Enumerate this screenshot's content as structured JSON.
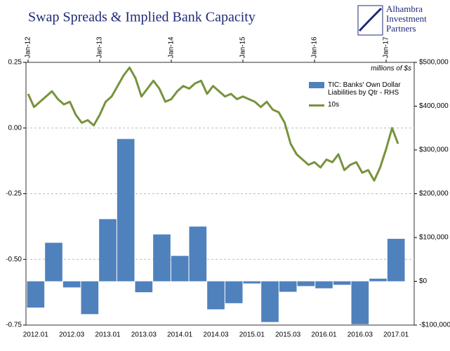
{
  "chart_data": {
    "type": "bar_line",
    "title": "Swap Spreads & Implied Bank Capacity",
    "logo": [
      "Alhambra",
      "Investment",
      "Partners"
    ],
    "annotation": "millions of $s",
    "top_ticks": [
      "Jan-12",
      "Jan-13",
      "Jan-14",
      "Jan-15",
      "Jan-16",
      "Jan-17"
    ],
    "categories": [
      "2012.01",
      null,
      "2012.03",
      null,
      "2013.01",
      null,
      "2013.03",
      null,
      "2014.01",
      null,
      "2014.03",
      null,
      "2015.01",
      null,
      "2015.03",
      null,
      "2016.01",
      null,
      "2016.03",
      null,
      "2017.01"
    ],
    "bars": {
      "name": "TIC: Banks' Own Dollar Liabilities by Qtr - RHS",
      "color": "#4f81bd",
      "axis": "y2",
      "values": [
        -60000,
        88000,
        -14000,
        -75000,
        142000,
        325000,
        -25000,
        107000,
        58000,
        125000,
        -64000,
        -50000,
        -5000,
        -93000,
        -24000,
        -11000,
        -16000,
        -8000,
        -98000,
        6000,
        97000
      ]
    },
    "line": {
      "name": "10s",
      "color": "#77933c",
      "x": [
        "2012-01",
        "2012-02",
        "2012-03",
        "2012-04",
        "2012-05",
        "2012-06",
        "2012-07",
        "2012-08",
        "2012-09",
        "2012-10",
        "2012-11",
        "2012-12",
        "2013-01",
        "2013-02",
        "2013-03",
        "2013-04",
        "2013-05",
        "2013-06",
        "2013-07",
        "2013-08",
        "2013-09",
        "2013-10",
        "2013-11",
        "2013-12",
        "2014-01",
        "2014-02",
        "2014-03",
        "2014-04",
        "2014-05",
        "2014-06",
        "2014-07",
        "2014-08",
        "2014-09",
        "2014-10",
        "2014-11",
        "2014-12",
        "2015-01",
        "2015-02",
        "2015-03",
        "2015-04",
        "2015-05",
        "2015-06",
        "2015-07",
        "2015-08",
        "2015-09",
        "2015-10",
        "2015-11",
        "2015-12",
        "2016-01",
        "2016-02",
        "2016-03",
        "2016-04",
        "2016-05",
        "2016-06",
        "2016-07",
        "2016-08",
        "2016-09",
        "2016-10",
        "2016-11",
        "2016-12",
        "2017-01",
        "2017-02",
        "2017-03"
      ],
      "values": [
        0.13,
        0.08,
        0.1,
        0.12,
        0.14,
        0.11,
        0.09,
        0.1,
        0.05,
        0.02,
        0.03,
        0.01,
        0.05,
        0.1,
        0.12,
        0.16,
        0.2,
        0.23,
        0.19,
        0.12,
        0.15,
        0.18,
        0.15,
        0.1,
        0.11,
        0.14,
        0.16,
        0.15,
        0.17,
        0.18,
        0.13,
        0.16,
        0.14,
        0.12,
        0.13,
        0.11,
        0.12,
        0.11,
        0.1,
        0.08,
        0.1,
        0.07,
        0.06,
        0.02,
        -0.06,
        -0.1,
        -0.12,
        -0.14,
        -0.13,
        -0.15,
        -0.12,
        -0.13,
        -0.1,
        -0.16,
        -0.14,
        -0.13,
        -0.17,
        -0.16,
        -0.2,
        -0.15,
        -0.08,
        0.0,
        -0.06
      ]
    },
    "ylim": [
      -0.75,
      0.25
    ],
    "yticks": [
      0.25,
      {
        "value": 0,
        "label": "0.00"
      },
      -0.25,
      {
        "value": -0.5,
        "label": "-0.50"
      },
      -0.75
    ],
    "y2lim": [
      -100000,
      500000
    ],
    "y2ticks": [
      {
        "value": 500000,
        "label": "$500,000"
      },
      {
        "value": 400000,
        "label": "$400,000"
      },
      {
        "value": 300000,
        "label": "$300,000"
      },
      {
        "value": 200000,
        "label": "$200,000"
      },
      {
        "value": 100000,
        "label": "$100,000"
      },
      {
        "value": 0,
        "label": "$0"
      },
      {
        "value": -100000,
        "label": "-$100,000"
      }
    ],
    "grid": true
  }
}
